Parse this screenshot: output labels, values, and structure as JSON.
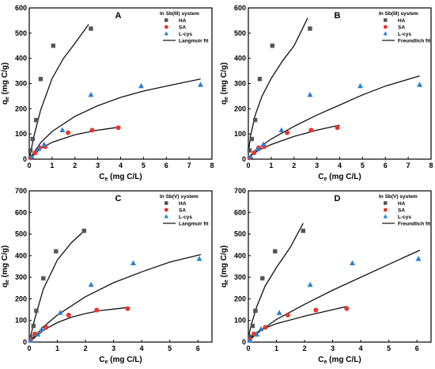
{
  "axis_labels": {
    "y_main": "q",
    "y_sub": "e",
    "y_unit": " (mg C/g)",
    "x_main": "C",
    "x_sub": "e",
    "x_unit": " (mg C/L)"
  },
  "legend_labels": [
    "HA",
    "SA",
    "L-cys"
  ],
  "colors": {
    "HA": "#555555",
    "SA": "#e8352b",
    "L-cys": "#2a7fd4",
    "fit": "#111111"
  },
  "chart_data": [
    {
      "type": "scatter",
      "panel_label": "A",
      "system": "In Sb(III) system",
      "fit_name": "Langmuir fit",
      "xlim": [
        0,
        8
      ],
      "ylim": [
        0,
        600
      ],
      "xticks": [
        0,
        1,
        2,
        3,
        4,
        5,
        6,
        7,
        8
      ],
      "yticks": [
        0,
        100,
        200,
        300,
        400,
        500,
        600
      ],
      "series": [
        {
          "name": "HA",
          "marker": "square",
          "points": [
            [
              0.05,
              35
            ],
            [
              0.15,
              80
            ],
            [
              0.3,
              155
            ],
            [
              0.5,
              318
            ],
            [
              1.05,
              450
            ],
            [
              2.7,
              518
            ]
          ],
          "fit": [
            [
              0,
              0
            ],
            [
              0.2,
              90
            ],
            [
              0.5,
              195
            ],
            [
              1,
              320
            ],
            [
              1.5,
              400
            ],
            [
              2,
              460
            ],
            [
              2.6,
              535
            ]
          ]
        },
        {
          "name": "SA",
          "marker": "circle",
          "points": [
            [
              0.05,
              5
            ],
            [
              0.25,
              25
            ],
            [
              0.45,
              45
            ],
            [
              0.7,
              50
            ],
            [
              1.7,
              105
            ],
            [
              2.75,
              115
            ],
            [
              3.9,
              125
            ]
          ],
          "fit": [
            [
              0,
              0
            ],
            [
              0.5,
              42
            ],
            [
              1,
              67
            ],
            [
              2,
              97
            ],
            [
              3,
              115
            ],
            [
              4,
              128
            ]
          ]
        },
        {
          "name": "L-cys",
          "marker": "triangle",
          "points": [
            [
              0.1,
              10
            ],
            [
              0.4,
              40
            ],
            [
              0.65,
              58
            ],
            [
              1.45,
              115
            ],
            [
              2.7,
              255
            ],
            [
              4.9,
              290
            ],
            [
              7.5,
              295
            ]
          ],
          "fit": [
            [
              0,
              0
            ],
            [
              0.5,
              65
            ],
            [
              1,
              110
            ],
            [
              2,
              170
            ],
            [
              3,
              212
            ],
            [
              4,
              245
            ],
            [
              5,
              270
            ],
            [
              6,
              290
            ],
            [
              7.5,
              318
            ]
          ]
        }
      ]
    },
    {
      "type": "scatter",
      "panel_label": "B",
      "system": "In Sb(III) system",
      "fit_name": "Freundlich fit",
      "xlim": [
        0,
        8
      ],
      "ylim": [
        0,
        600
      ],
      "xticks": [
        0,
        1,
        2,
        3,
        4,
        5,
        6,
        7,
        8
      ],
      "yticks": [
        0,
        100,
        200,
        300,
        400,
        500,
        600
      ],
      "series": [
        {
          "name": "HA",
          "marker": "square",
          "points": [
            [
              0.05,
              35
            ],
            [
              0.15,
              80
            ],
            [
              0.3,
              155
            ],
            [
              0.5,
              318
            ],
            [
              1.05,
              450
            ],
            [
              2.7,
              518
            ]
          ],
          "fit": [
            [
              0.02,
              40
            ],
            [
              0.1,
              95
            ],
            [
              0.3,
              175
            ],
            [
              0.6,
              250
            ],
            [
              1,
              320
            ],
            [
              1.5,
              390
            ],
            [
              2,
              450
            ],
            [
              2.6,
              560
            ]
          ]
        },
        {
          "name": "SA",
          "marker": "circle",
          "points": [
            [
              0.05,
              5
            ],
            [
              0.25,
              25
            ],
            [
              0.45,
              45
            ],
            [
              0.7,
              50
            ],
            [
              1.7,
              105
            ],
            [
              2.75,
              115
            ],
            [
              3.9,
              125
            ]
          ],
          "fit": [
            [
              0.02,
              5
            ],
            [
              0.2,
              20
            ],
            [
              0.5,
              38
            ],
            [
              1,
              58
            ],
            [
              2,
              90
            ],
            [
              3,
              115
            ],
            [
              4,
              135
            ]
          ]
        },
        {
          "name": "L-cys",
          "marker": "triangle",
          "points": [
            [
              0.1,
              10
            ],
            [
              0.4,
              40
            ],
            [
              0.65,
              58
            ],
            [
              1.45,
              115
            ],
            [
              2.7,
              255
            ],
            [
              4.9,
              290
            ],
            [
              7.5,
              295
            ]
          ],
          "fit": [
            [
              0.02,
              5
            ],
            [
              0.3,
              35
            ],
            [
              1,
              80
            ],
            [
              2,
              130
            ],
            [
              3,
              175
            ],
            [
              4,
              215
            ],
            [
              5,
              255
            ],
            [
              6,
              290
            ],
            [
              7.5,
              330
            ]
          ]
        }
      ]
    },
    {
      "type": "scatter",
      "panel_label": "C",
      "system": "In Sb(V) system",
      "fit_name": "Langmuir fit",
      "xlim": [
        0,
        6.5
      ],
      "ylim": [
        0,
        700
      ],
      "xticks": [
        0,
        1,
        2,
        3,
        4,
        5,
        6
      ],
      "yticks": [
        0,
        100,
        200,
        300,
        400,
        500,
        600,
        700
      ],
      "series": [
        {
          "name": "HA",
          "marker": "square",
          "points": [
            [
              0.05,
              25
            ],
            [
              0.15,
              75
            ],
            [
              0.25,
              145
            ],
            [
              0.5,
              295
            ],
            [
              0.95,
              420
            ],
            [
              1.95,
              515
            ]
          ],
          "fit": [
            [
              0,
              0
            ],
            [
              0.2,
              110
            ],
            [
              0.5,
              245
            ],
            [
              1,
              380
            ],
            [
              1.5,
              460
            ],
            [
              2,
              520
            ]
          ]
        },
        {
          "name": "SA",
          "marker": "circle",
          "points": [
            [
              0.05,
              12
            ],
            [
              0.2,
              38
            ],
            [
              0.6,
              68
            ],
            [
              1.4,
              125
            ],
            [
              2.4,
              148
            ],
            [
              3.5,
              155
            ]
          ],
          "fit": [
            [
              0,
              0
            ],
            [
              0.5,
              55
            ],
            [
              1,
              90
            ],
            [
              1.5,
              115
            ],
            [
              2,
              132
            ],
            [
              2.5,
              145
            ],
            [
              3,
              153
            ],
            [
              3.5,
              160
            ]
          ]
        },
        {
          "name": "L-cys",
          "marker": "triangle",
          "points": [
            [
              0.05,
              8
            ],
            [
              0.3,
              35
            ],
            [
              0.45,
              60
            ],
            [
              1.1,
              135
            ],
            [
              2.2,
              265
            ],
            [
              3.7,
              365
            ],
            [
              6.05,
              385
            ]
          ],
          "fit": [
            [
              0,
              0
            ],
            [
              0.5,
              70
            ],
            [
              1,
              125
            ],
            [
              2,
              210
            ],
            [
              3,
              275
            ],
            [
              4,
              325
            ],
            [
              5,
              370
            ],
            [
              6.1,
              405
            ]
          ]
        }
      ]
    },
    {
      "type": "scatter",
      "panel_label": "D",
      "system": "In Sb(V) system",
      "fit_name": "Freundlich fit",
      "xlim": [
        0,
        6.5
      ],
      "ylim": [
        0,
        700
      ],
      "xticks": [
        0,
        1,
        2,
        3,
        4,
        5,
        6
      ],
      "yticks": [
        0,
        100,
        200,
        300,
        400,
        500,
        600,
        700
      ],
      "series": [
        {
          "name": "HA",
          "marker": "square",
          "points": [
            [
              0.05,
              25
            ],
            [
              0.15,
              75
            ],
            [
              0.25,
              145
            ],
            [
              0.5,
              295
            ],
            [
              0.95,
              420
            ],
            [
              1.95,
              515
            ]
          ],
          "fit": [
            [
              0.02,
              30
            ],
            [
              0.1,
              80
            ],
            [
              0.3,
              165
            ],
            [
              0.6,
              260
            ],
            [
              1,
              345
            ],
            [
              1.5,
              440
            ],
            [
              1.95,
              550
            ]
          ]
        },
        {
          "name": "SA",
          "marker": "circle",
          "points": [
            [
              0.05,
              12
            ],
            [
              0.2,
              38
            ],
            [
              0.6,
              68
            ],
            [
              1.4,
              125
            ],
            [
              2.4,
              148
            ],
            [
              3.5,
              155
            ]
          ],
          "fit": [
            [
              0.02,
              10
            ],
            [
              0.2,
              35
            ],
            [
              0.5,
              60
            ],
            [
              1,
              85
            ],
            [
              2,
              120
            ],
            [
              3,
              150
            ],
            [
              3.5,
              165
            ]
          ]
        },
        {
          "name": "L-cys",
          "marker": "triangle",
          "points": [
            [
              0.05,
              8
            ],
            [
              0.3,
              35
            ],
            [
              0.45,
              60
            ],
            [
              1.1,
              135
            ],
            [
              2.2,
              265
            ],
            [
              3.7,
              365
            ],
            [
              6.05,
              385
            ]
          ],
          "fit": [
            [
              0.02,
              5
            ],
            [
              0.3,
              40
            ],
            [
              1,
              105
            ],
            [
              2,
              175
            ],
            [
              3,
              240
            ],
            [
              4,
              300
            ],
            [
              5,
              360
            ],
            [
              6.1,
              425
            ]
          ]
        }
      ]
    }
  ]
}
